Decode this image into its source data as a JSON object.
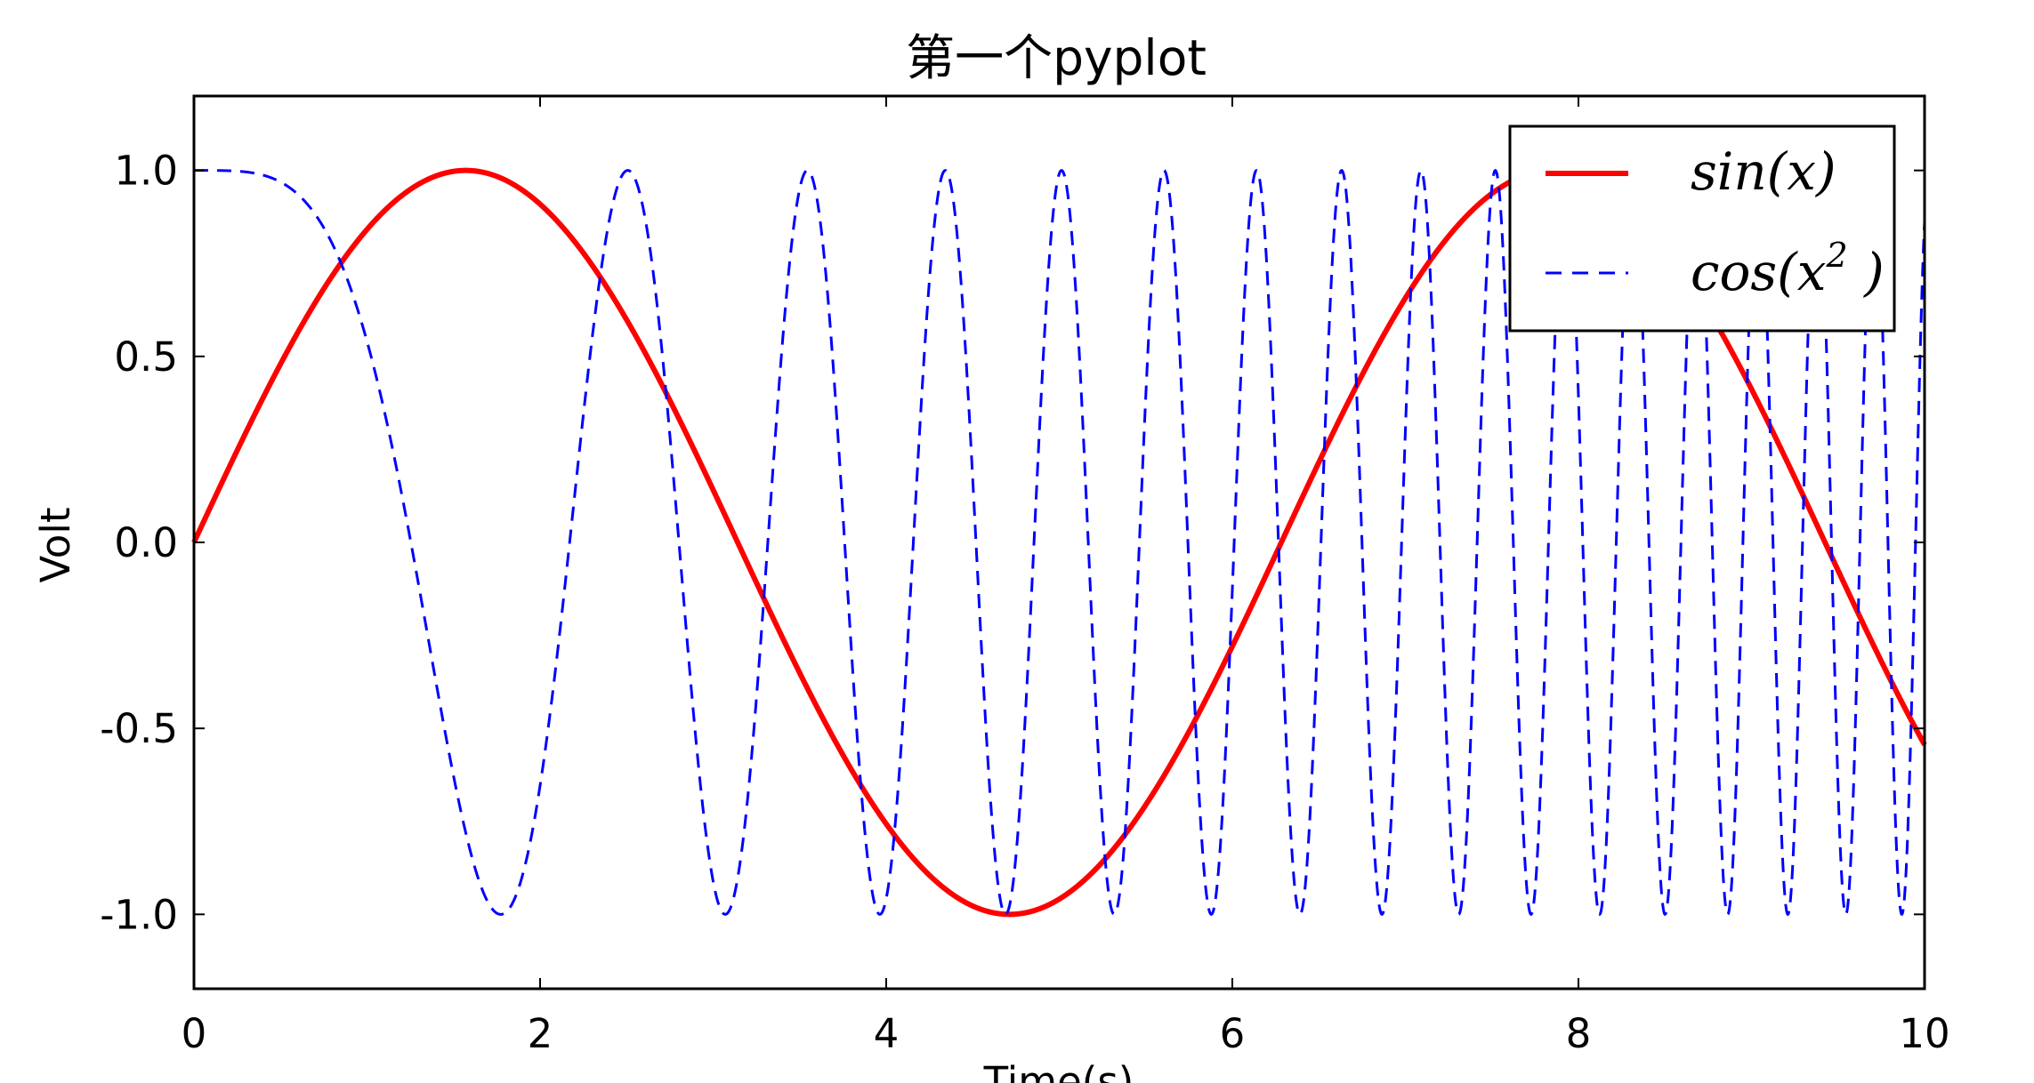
{
  "chart_data": {
    "type": "line",
    "title": "第一个pyplot",
    "xlabel": "Time(s)",
    "ylabel": "Volt",
    "xlim": [
      0,
      10
    ],
    "ylim": [
      -1.2,
      1.2
    ],
    "x_ticks": [
      0,
      2,
      4,
      6,
      8,
      10
    ],
    "x_tick_labels": [
      "0",
      "2",
      "4",
      "6",
      "8",
      "10"
    ],
    "y_ticks": [
      1.0,
      0.5,
      0.0,
      -0.5,
      -1.0
    ],
    "y_tick_labels": [
      "1.0",
      "0.5",
      "0.0",
      "-0.5",
      "-1.0"
    ],
    "grid": false,
    "legend": "top-right",
    "series": [
      {
        "name": "sin(x)",
        "function": "sin(x)",
        "color": "#ff0000",
        "line_style": "solid",
        "x_range": [
          0,
          10
        ],
        "sample_points": [
          [
            0,
            0.0
          ],
          [
            1.571,
            1.0
          ],
          [
            3.142,
            0.0
          ],
          [
            4.712,
            -1.0
          ],
          [
            6.283,
            0.0
          ],
          [
            7.854,
            1.0
          ],
          [
            9.425,
            0.0
          ],
          [
            10,
            -0.544
          ]
        ]
      },
      {
        "name": "cos(x²)",
        "function": "cos(x^2)",
        "color": "#0000ff",
        "line_style": "dashed",
        "x_range": [
          0,
          10
        ],
        "sample_points": [
          [
            0,
            1.0
          ],
          [
            1.772,
            -1.0
          ],
          [
            2.507,
            1.0
          ],
          [
            3.07,
            -1.0
          ],
          [
            3.545,
            1.0
          ],
          [
            10,
            0.862
          ]
        ]
      }
    ]
  }
}
